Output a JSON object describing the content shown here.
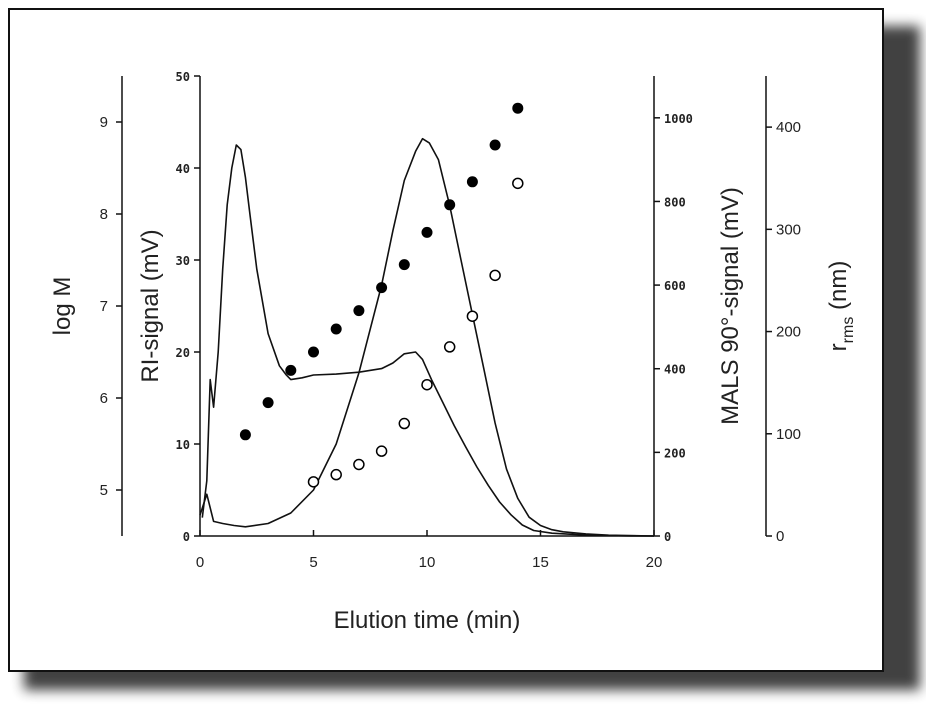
{
  "chart_data": {
    "type": "scatter",
    "title": "",
    "xlabel": "Elution time (min)",
    "xlim": [
      0,
      20
    ],
    "xticks": [
      "0",
      "5",
      "10",
      "15",
      "20"
    ],
    "grid": false,
    "legend": "none",
    "axes": {
      "logM": {
        "label": "log M",
        "lim": [
          4.5,
          9.5
        ],
        "ticks": [
          "5",
          "6",
          "7",
          "8",
          "9"
        ]
      },
      "ri": {
        "label": "RI-signal (mV)",
        "lim": [
          0,
          50
        ],
        "ticks": [
          "0",
          "10",
          "20",
          "30",
          "40",
          "50"
        ]
      },
      "mals": {
        "label": "MALS 90°-signal (mV)",
        "lim": [
          0,
          1100
        ],
        "ticks": [
          "0",
          "200",
          "400",
          "600",
          "800",
          "1000"
        ]
      },
      "rms": {
        "label_main": "r",
        "label_sub": "rms",
        "label_unit": " (nm)",
        "lim": [
          0,
          450
        ],
        "ticks": [
          "0",
          "100",
          "200",
          "300",
          "400"
        ]
      }
    },
    "series": [
      {
        "kind": "line",
        "axis": "ri",
        "color": "#111111",
        "x": [
          0.1,
          0.3,
          0.45,
          0.6,
          0.8,
          1.0,
          1.2,
          1.4,
          1.6,
          1.8,
          2.0,
          2.2,
          2.5,
          3.0,
          3.5,
          3.8,
          4.0,
          4.5,
          5.0,
          6.0,
          7.0,
          8.0,
          8.5,
          9.0,
          9.5,
          9.8,
          10.2,
          10.7,
          11.2,
          11.7,
          12.2,
          12.7,
          13.2,
          13.7,
          14.2,
          14.7,
          15.5,
          17.0,
          19.0,
          20.0
        ],
        "y": [
          2,
          6,
          17,
          14,
          20,
          29,
          36,
          40,
          42.5,
          42,
          39,
          35,
          29,
          22,
          18.5,
          17.5,
          17,
          17.2,
          17.5,
          17.6,
          17.8,
          18.2,
          18.8,
          19.8,
          20,
          19.2,
          17,
          14.5,
          12,
          9.7,
          7.5,
          5.5,
          3.7,
          2.3,
          1.2,
          0.6,
          0.3,
          0.1,
          0,
          0
        ]
      },
      {
        "kind": "line",
        "axis": "mals",
        "color": "#111111",
        "x": [
          0,
          0.3,
          0.6,
          1.0,
          1.5,
          2.0,
          3.0,
          4.0,
          5.0,
          6.0,
          7.0,
          8.0,
          8.5,
          9.0,
          9.5,
          9.8,
          10.1,
          10.5,
          11.0,
          11.5,
          12.0,
          12.5,
          13.0,
          13.5,
          14.0,
          14.5,
          15.0,
          15.5,
          16.0,
          17.0,
          18.0,
          20.0
        ],
        "y": [
          50,
          100,
          35,
          30,
          25,
          22,
          30,
          55,
          110,
          220,
          390,
          600,
          730,
          850,
          920,
          950,
          940,
          900,
          790,
          660,
          530,
          400,
          270,
          160,
          90,
          45,
          25,
          15,
          10,
          5,
          2,
          0
        ]
      },
      {
        "kind": "points",
        "marker": "filled-circle",
        "axis": "logM",
        "color": "#000000",
        "x": [
          2,
          3,
          4,
          5,
          6,
          7,
          8,
          9,
          10,
          11,
          12,
          13,
          14
        ],
        "y": [
          5.6,
          5.95,
          6.3,
          6.5,
          6.75,
          6.95,
          7.2,
          7.45,
          7.8,
          8.1,
          8.35,
          8.75,
          9.15
        ]
      },
      {
        "kind": "points",
        "marker": "open-circle",
        "axis": "rms",
        "color": "#000000",
        "x": [
          5,
          6,
          7,
          8,
          9,
          10,
          11,
          12,
          13,
          14
        ],
        "y": [
          53,
          60,
          70,
          83,
          110,
          148,
          185,
          215,
          255,
          345
        ]
      }
    ]
  }
}
